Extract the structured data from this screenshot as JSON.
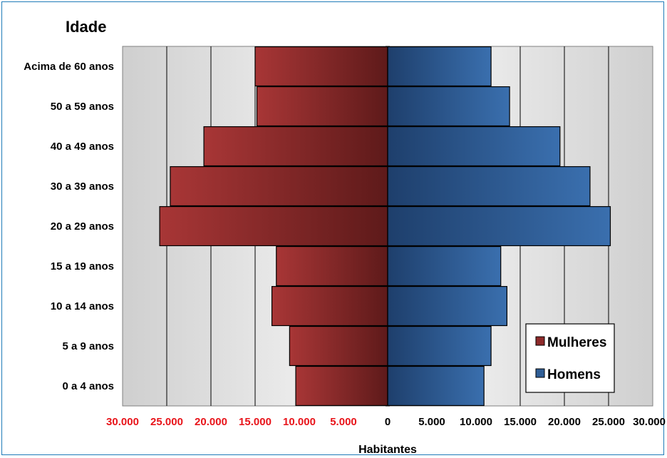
{
  "chart_data": {
    "type": "bar",
    "orientation": "horizontal-population-pyramid",
    "y_axis_title": "Idade",
    "x_axis_title": "Habitantes",
    "categories": [
      "Acima de 60 anos",
      "50 a 59 anos",
      "40 a 49 anos",
      "30 a 39 anos",
      "20 a 29 anos",
      "15 a 19 anos",
      "10 a 14 anos",
      "5 a 9 anos",
      "0 a 4 anos"
    ],
    "series": [
      {
        "name": "Mulheres",
        "color": "#8e2a2a",
        "side": "left",
        "values": [
          15000,
          14800,
          20800,
          24600,
          25800,
          12600,
          13100,
          11100,
          10400
        ]
      },
      {
        "name": "Homens",
        "color": "#2f5e96",
        "side": "right",
        "values": [
          11700,
          13800,
          19500,
          22900,
          25200,
          12800,
          13500,
          11700,
          10900
        ]
      }
    ],
    "xlim": [
      -30000,
      30000
    ],
    "x_tick_labels_left": [
      "30.000",
      "25.000",
      "20.000",
      "15.000",
      "10.000",
      "5.000"
    ],
    "x_tick_labels_right": [
      "0",
      "5.000",
      "10.000",
      "15.000",
      "20.000",
      "25.000",
      "30.000"
    ],
    "negative_tick_color": "#e8141a",
    "positive_tick_color": "#000000",
    "grid": true,
    "legend": {
      "position": "bottom-right",
      "entries": [
        "Mulheres",
        "Homens"
      ]
    }
  }
}
